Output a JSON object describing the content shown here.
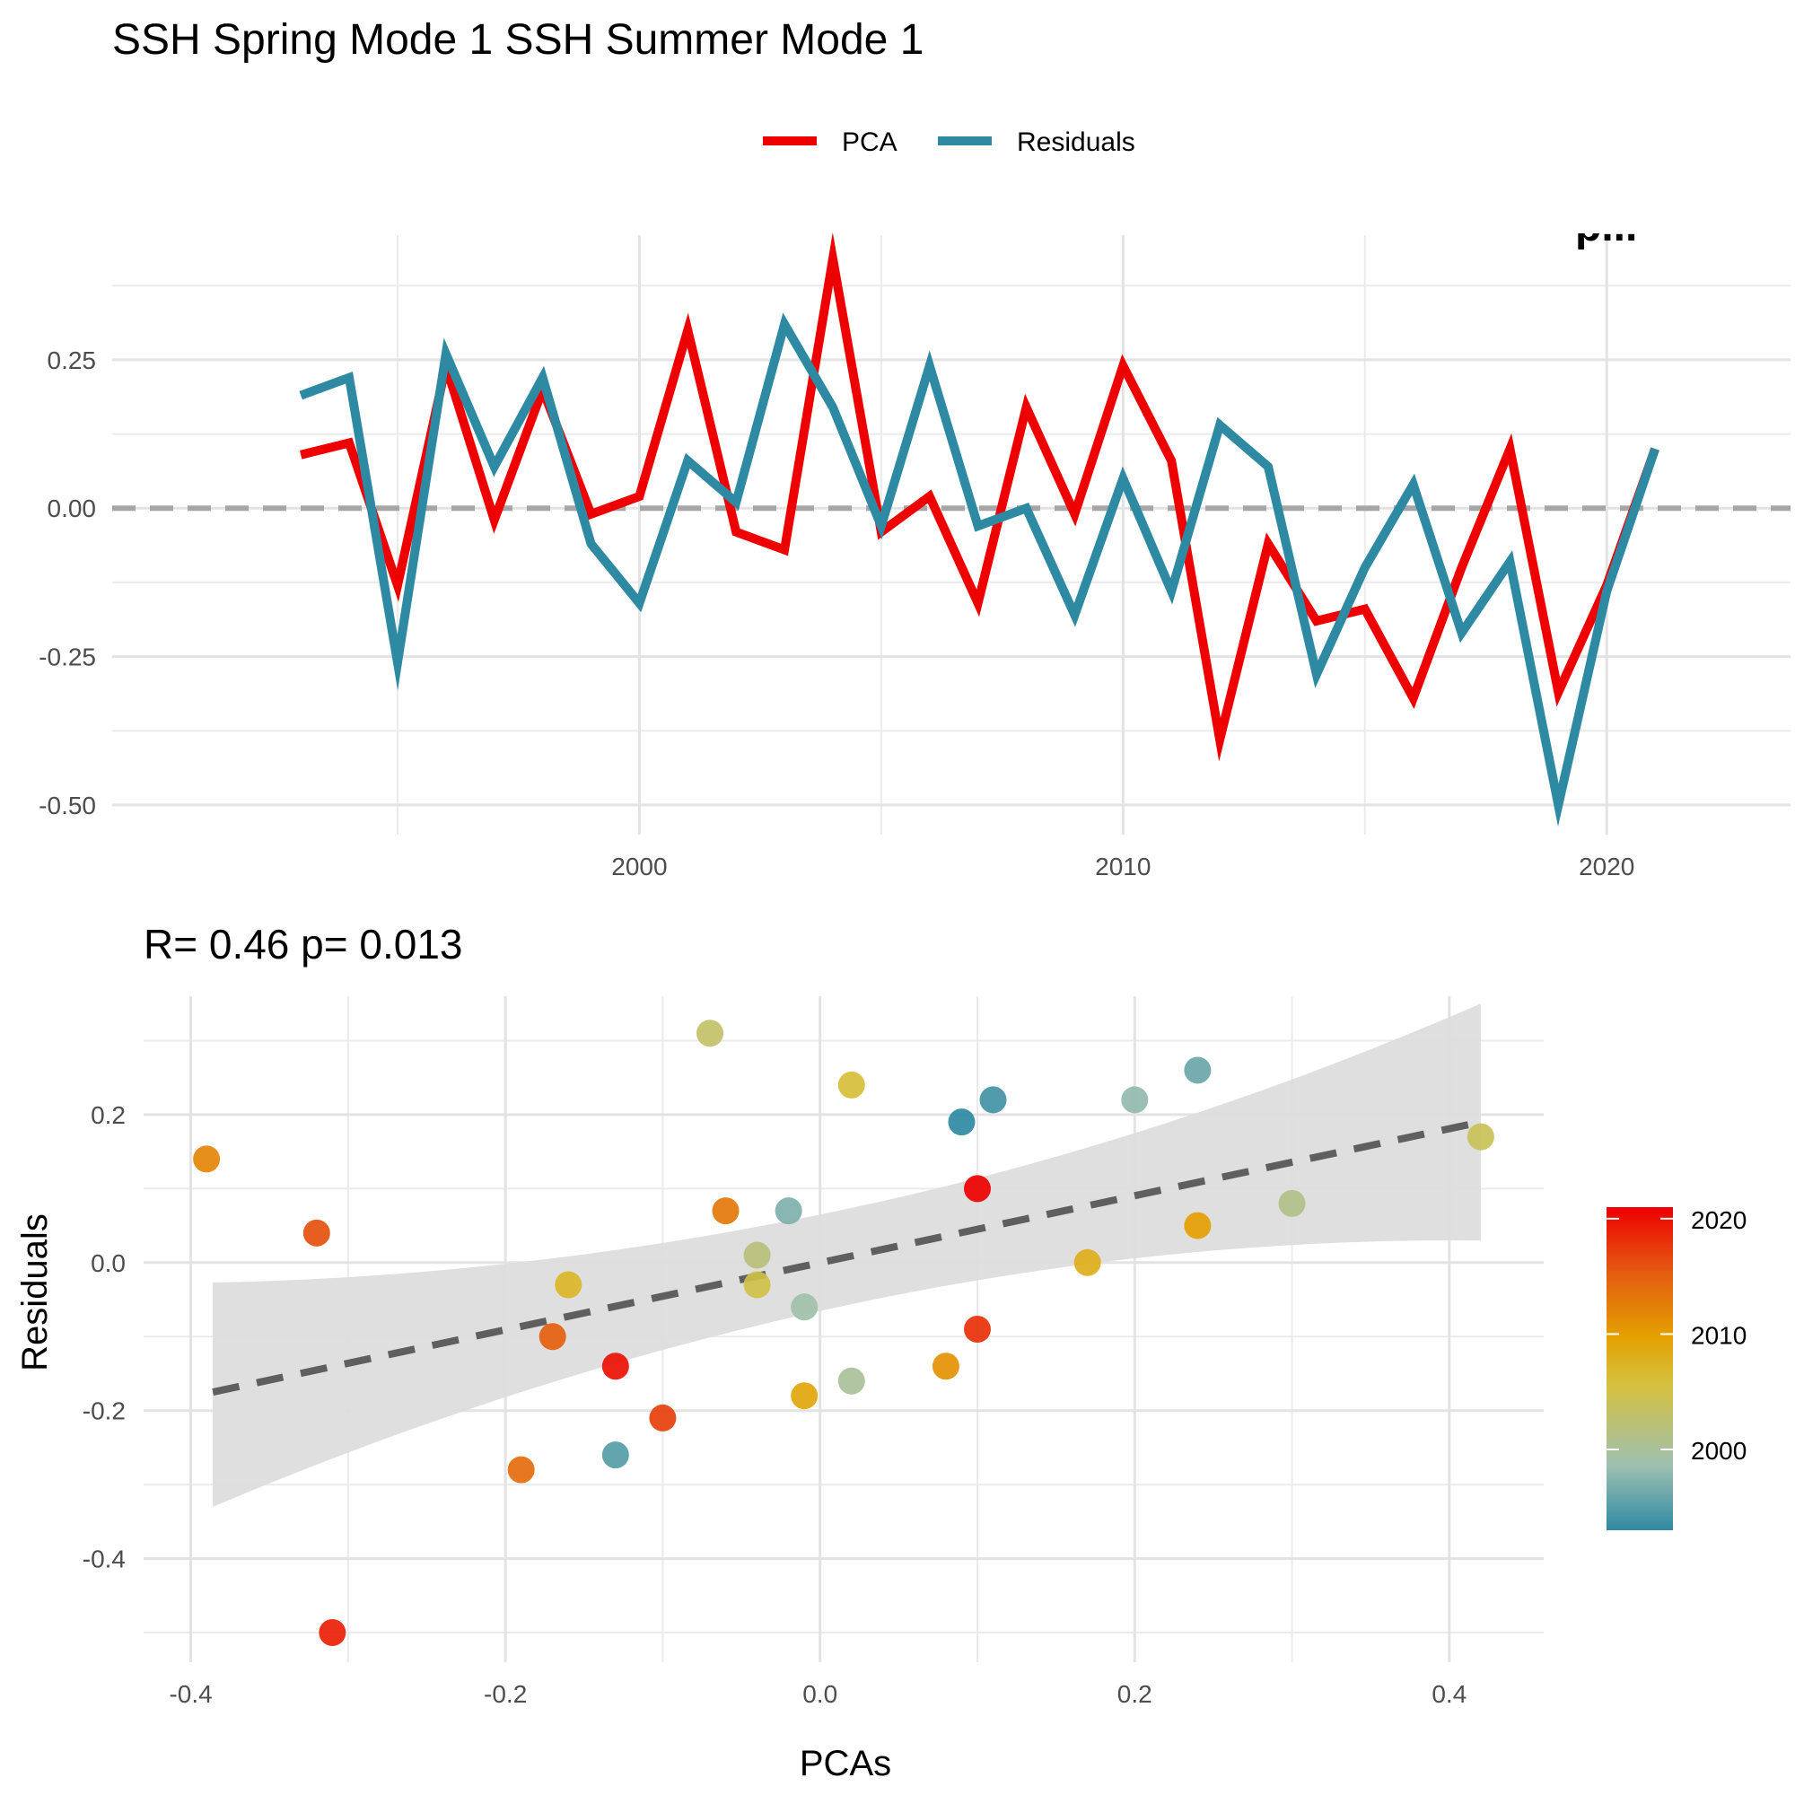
{
  "title": "SSH Spring Mode 1 SSH Summer Mode 1",
  "chart_data": [
    {
      "type": "line",
      "xlabel": "",
      "ylabel": "",
      "x": [
        1993,
        1994,
        1995,
        1996,
        1997,
        1998,
        1999,
        2000,
        2001,
        2002,
        2003,
        2004,
        2005,
        2006,
        2007,
        2008,
        2009,
        2010,
        2011,
        2012,
        2013,
        2014,
        2015,
        2016,
        2017,
        2018,
        2019,
        2020,
        2021
      ],
      "series": [
        {
          "name": "PCA",
          "color": "#EE0000",
          "values": [
            0.09,
            0.11,
            -0.13,
            0.24,
            -0.02,
            0.2,
            -0.01,
            0.02,
            0.3,
            -0.04,
            -0.07,
            0.42,
            -0.04,
            0.02,
            -0.16,
            0.17,
            -0.01,
            0.24,
            0.08,
            -0.39,
            -0.06,
            -0.19,
            -0.17,
            -0.32,
            -0.1,
            0.1,
            -0.31,
            -0.13,
            0.1
          ]
        },
        {
          "name": "Residuals",
          "color": "#2E89A2",
          "values": [
            0.19,
            0.22,
            -0.26,
            0.26,
            0.07,
            0.22,
            -0.06,
            -0.16,
            0.08,
            0.01,
            0.31,
            0.17,
            -0.03,
            0.24,
            -0.03,
            0.0,
            -0.18,
            0.05,
            -0.14,
            0.14,
            0.07,
            -0.28,
            -0.1,
            0.04,
            -0.21,
            -0.09,
            -0.5,
            -0.14,
            0.1
          ]
        }
      ],
      "xlim": [
        1989.1,
        2023.8
      ],
      "ylim": [
        -0.55,
        0.46
      ],
      "x_ticks": [
        2000,
        2010,
        2020
      ],
      "y_ticks": [
        -0.5,
        -0.25,
        0.0,
        0.25
      ],
      "y_tick_labels": [
        "-0.50",
        "-0.25",
        "0.00",
        "0.25"
      ],
      "reference_line": {
        "y": 0,
        "style": "dashed",
        "color": "#A6A6A6"
      },
      "legend": {
        "position": "top"
      },
      "grid": true,
      "corner_annotation": "p..."
    },
    {
      "type": "scatter",
      "subtitle": "R= 0.46  p= 0.013",
      "xlabel": "PCAs",
      "ylabel": "Residuals",
      "x": [
        0.09,
        0.11,
        -0.13,
        0.24,
        -0.02,
        0.2,
        -0.01,
        0.02,
        0.3,
        -0.04,
        -0.07,
        0.42,
        -0.04,
        0.02,
        -0.16,
        0.17,
        -0.01,
        0.24,
        0.08,
        -0.39,
        -0.06,
        -0.19,
        -0.17,
        -0.32,
        -0.1,
        0.1,
        -0.31,
        -0.13,
        0.1
      ],
      "y": [
        0.19,
        0.22,
        -0.26,
        0.26,
        0.07,
        0.22,
        -0.06,
        -0.16,
        0.08,
        0.01,
        0.31,
        0.17,
        -0.03,
        0.24,
        -0.03,
        0.0,
        -0.18,
        0.05,
        -0.14,
        0.14,
        0.07,
        -0.28,
        -0.1,
        0.04,
        -0.21,
        -0.09,
        -0.5,
        -0.14,
        0.1
      ],
      "color_by_year": [
        1993,
        1994,
        1995,
        1996,
        1997,
        1998,
        1999,
        2000,
        2001,
        2002,
        2003,
        2004,
        2005,
        2006,
        2007,
        2008,
        2009,
        2010,
        2011,
        2012,
        2013,
        2014,
        2015,
        2016,
        2017,
        2018,
        2019,
        2020,
        2021
      ],
      "xlim": [
        -0.43,
        0.46
      ],
      "ylim": [
        -0.54,
        0.36
      ],
      "x_ticks": [
        -0.4,
        -0.2,
        0.0,
        0.2,
        0.4
      ],
      "x_tick_labels": [
        "-0.4",
        "-0.2",
        "0.0",
        "0.2",
        "0.4"
      ],
      "y_ticks": [
        -0.4,
        -0.2,
        0.0,
        0.2
      ],
      "y_tick_labels": [
        "-0.4",
        "-0.2",
        "0.0",
        "0.2"
      ],
      "fit_line": {
        "x": [
          -0.386,
          0.42
        ],
        "y": [
          -0.175,
          0.19
        ],
        "style": "dashed",
        "color": "#5F5F5F"
      },
      "confidence_band": {
        "x": [
          -0.386,
          0.42
        ],
        "upper": [
          -0.027,
          0.35
        ],
        "lower": [
          -0.33,
          0.03
        ],
        "color": "#DDDDDD"
      },
      "colorbar": {
        "range": [
          1993,
          2021
        ],
        "ticks": [
          2000,
          2010,
          2020
        ],
        "tick_labels": [
          "2000",
          "2010",
          "2020"
        ],
        "colors": [
          "#2E89A2",
          "#9EC0B1",
          "#D5C13E",
          "#E4A000",
          "#E45A10",
          "#EE0000"
        ]
      },
      "grid": true
    }
  ]
}
